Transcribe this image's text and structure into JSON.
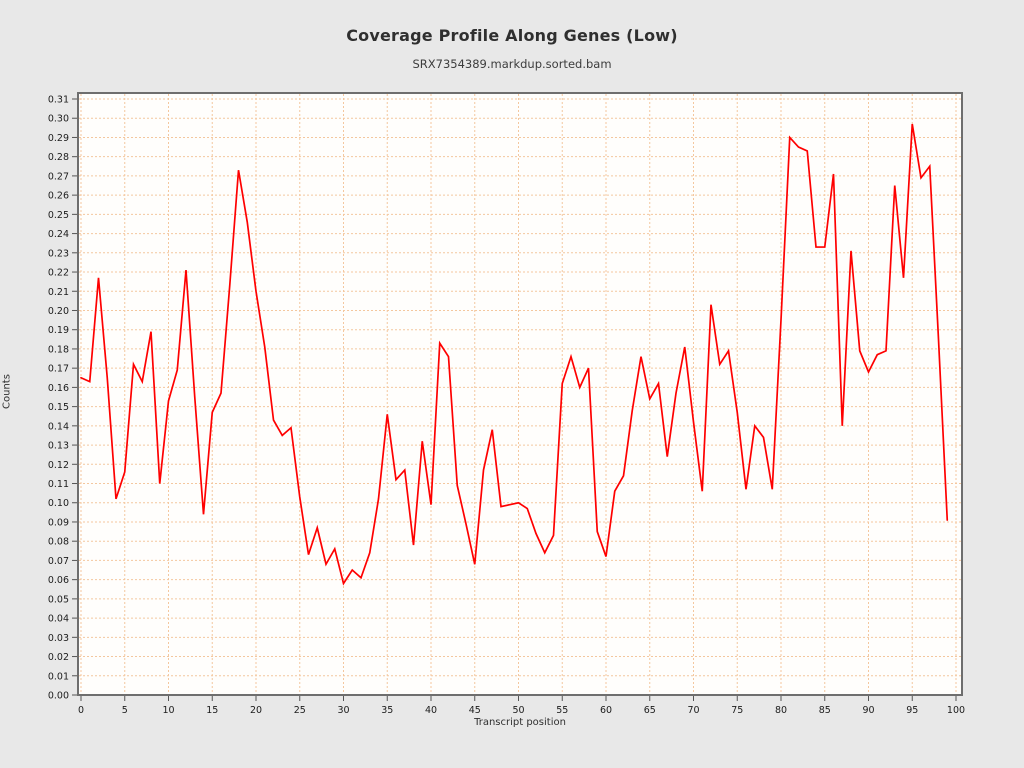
{
  "chart_data": {
    "type": "line",
    "title": "Coverage Profile Along Genes (Low)",
    "subtitle": "SRX7354389.markdup.sorted.bam",
    "xlabel": "Transcript position",
    "ylabel": "Counts",
    "legend": "none",
    "grid": "dashed, both axes, every 0.01 on y and every 5 on x",
    "xlim": [
      -0.5,
      100.8
    ],
    "ylim": [
      0,
      0.3136
    ],
    "x_ticks": [
      0,
      5,
      10,
      15,
      20,
      25,
      30,
      35,
      40,
      45,
      50,
      55,
      60,
      65,
      70,
      75,
      80,
      85,
      90,
      95,
      100
    ],
    "y_tick_min": 0.0,
    "y_tick_max": 0.31,
    "y_tick_step": 0.01,
    "x": [
      0,
      1,
      2,
      3,
      4,
      5,
      6,
      7,
      8,
      9,
      10,
      11,
      12,
      13,
      14,
      15,
      16,
      17,
      18,
      19,
      20,
      21,
      22,
      23,
      24,
      25,
      26,
      27,
      28,
      29,
      30,
      31,
      32,
      33,
      34,
      35,
      36,
      37,
      38,
      39,
      40,
      41,
      42,
      43,
      44,
      45,
      46,
      47,
      48,
      49,
      50,
      51,
      52,
      53,
      54,
      55,
      56,
      57,
      58,
      59,
      60,
      61,
      62,
      63,
      64,
      65,
      66,
      67,
      68,
      69,
      70,
      71,
      72,
      73,
      74,
      75,
      76,
      77,
      78,
      79,
      80,
      81,
      82,
      83,
      84,
      85,
      86,
      87,
      88,
      89,
      90,
      91,
      92,
      93,
      94,
      95,
      96,
      97,
      98,
      99
    ],
    "values": [
      0.165,
      0.163,
      0.217,
      0.165,
      0.102,
      0.116,
      0.172,
      0.163,
      0.189,
      0.11,
      0.153,
      0.169,
      0.221,
      0.155,
      0.094,
      0.147,
      0.157,
      0.213,
      0.273,
      0.246,
      0.21,
      0.181,
      0.143,
      0.135,
      0.139,
      0.103,
      0.073,
      0.087,
      0.068,
      0.076,
      0.058,
      0.065,
      0.061,
      0.074,
      0.102,
      0.146,
      0.112,
      0.117,
      0.078,
      0.132,
      0.099,
      0.183,
      0.176,
      0.109,
      0.089,
      0.068,
      0.117,
      0.138,
      0.098,
      0.099,
      0.1,
      0.097,
      0.084,
      0.074,
      0.083,
      0.162,
      0.176,
      0.16,
      0.17,
      0.085,
      0.072,
      0.106,
      0.114,
      0.148,
      0.176,
      0.154,
      0.162,
      0.124,
      0.157,
      0.181,
      0.142,
      0.106,
      0.203,
      0.172,
      0.179,
      0.147,
      0.107,
      0.14,
      0.134,
      0.107,
      0.195,
      0.29,
      0.285,
      0.283,
      0.233,
      0.233,
      0.271,
      0.14,
      0.231,
      0.179,
      0.168,
      0.177,
      0.179,
      0.265,
      0.217,
      0.297,
      0.269,
      0.275,
      0.185,
      0.091
    ],
    "colors": {
      "line": "#ff0000",
      "gridline": "#f4c79e",
      "frame": "#6e6e6e",
      "plot_background": "#fffefc",
      "page_background": "#e8e8e8",
      "tick": "#555555",
      "tick_label": "#1c1c1c"
    }
  }
}
